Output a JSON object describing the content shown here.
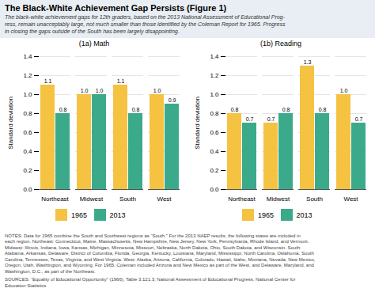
{
  "title": "The Black-White Achievement Gap Persists (Figure 1)",
  "subtitle": "The black-white achievement gaps for 12th graders, based on the 2013 National Assessment of Educational Prog-\nress, remain unacceptably large, not much smaller than those identified by the Coleman Report for 1965. Progress\nin closing the gaps outside of the South has been largely disappointing.",
  "annotations": [
    "NOTES: Data for 1965 combine the South and Southwest regions as “South.” For the 2013 NAEP results, the following states are included in\neach region. Northeast: Connecticut, Maine, Massachusetts, New Hampshire, New Jersey, New York, Pennsylvania, Rhode Island, and Vermont.\nMidwest: Illinois, Indiana, Iowa, Kansas, Michigan, Minnesota, Missouri, Nebraska, North Dakota, Ohio, South Dakota, and Wisconsin. South:\nAlabama, Arkansas, Delaware, District of Columbia, Florida, Georgia, Kentucky, Louisiana, Maryland, Mississippi, North Carolina, Oklahoma, South\nCarolina, Tennessee, Texas, Virginia, and West Virginia. West: Alaska, Arizona, California, Colorado, Hawaii, Idaho, Montana, Nevada, New Mexico,\nOregon, Utah, Washington, and Wyoming. For 1965, Coleman included Arizona and New Mexico as part of the West, and Delaware, Maryland, and\nWashington, D.C., as part of the Northeast.",
    "SOURCES: “Equality of Educational Opportunity” (1966), Table 3.121.3; National Assessment of Educational Progress, National Center for\nEducation Statistics"
  ],
  "chart_data": [
    {
      "type": "bar",
      "title": "(1a) Math",
      "categories": [
        "Northeast",
        "Midwest",
        "South",
        "West"
      ],
      "series": [
        {
          "name": "1965",
          "color": "#F5C242",
          "values": [
            1.1,
            1.0,
            1.1,
            1.0
          ],
          "value_labels": [
            "1.1",
            "1.0",
            "1.1",
            "1.0"
          ]
        },
        {
          "name": "2013",
          "color": "#3BAA8A",
          "values": [
            0.8,
            1.0,
            0.8,
            0.9
          ],
          "value_labels": [
            "0.8",
            "1.0",
            "0.8",
            "0.9"
          ]
        }
      ],
      "ylabel": "Standard deviation",
      "ylim": [
        0,
        1.4
      ],
      "yticks": [
        {
          "value": 0,
          "label": "0.0"
        },
        0.2,
        0.4,
        0.6,
        0.8,
        {
          "value": 1,
          "label": "1.0"
        },
        1.2,
        1.4
      ],
      "grid": true,
      "data_labels": true,
      "legend": "bottom"
    },
    {
      "type": "bar",
      "title": "(1b) Reading",
      "categories": [
        "Northeast",
        "Midwest",
        "South",
        "West"
      ],
      "series": [
        {
          "name": "1965",
          "color": "#F5C242",
          "values": [
            0.8,
            0.7,
            1.3,
            1.0
          ],
          "value_labels": [
            "0.8",
            "0.7",
            "1.3",
            "1.0"
          ]
        },
        {
          "name": "2013",
          "color": "#3BAA8A",
          "values": [
            0.7,
            0.8,
            0.8,
            0.7
          ],
          "value_labels": [
            "0.7",
            "0.8",
            "0.8",
            "0.7"
          ]
        }
      ],
      "ylabel": "Standard deviation",
      "ylim": [
        0,
        1.4
      ],
      "yticks": [
        {
          "value": 0,
          "label": "0.0"
        },
        0.2,
        0.4,
        0.6,
        0.8,
        {
          "value": 1,
          "label": "1.0"
        },
        1.2,
        1.4
      ],
      "grid": true,
      "data_labels": true,
      "legend": "bottom"
    }
  ]
}
